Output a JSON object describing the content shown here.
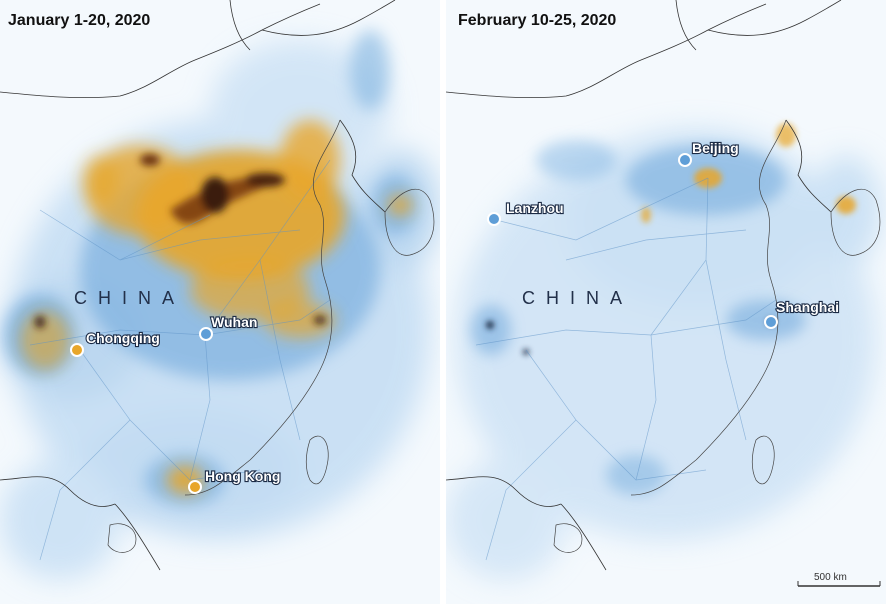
{
  "panels": [
    {
      "title": "January 1-20, 2020",
      "country_label": "CHINA",
      "cities": [
        {
          "name": "Chongqing"
        },
        {
          "name": "Wuhan"
        },
        {
          "name": "Hong Kong"
        }
      ]
    },
    {
      "title": "February 10-25, 2020",
      "country_label": "CHINA",
      "cities": [
        {
          "name": "Beijing"
        },
        {
          "name": "Lanzhou"
        },
        {
          "name": "Shanghai"
        }
      ]
    }
  ],
  "scale_bar": {
    "label": "500 km"
  },
  "colors": {
    "background": "#f4f9fd",
    "low_emission": "#7fb3e0",
    "mid_emission": "#e8a62a",
    "high_emission": "#3a1a0a",
    "border": "#333333"
  }
}
